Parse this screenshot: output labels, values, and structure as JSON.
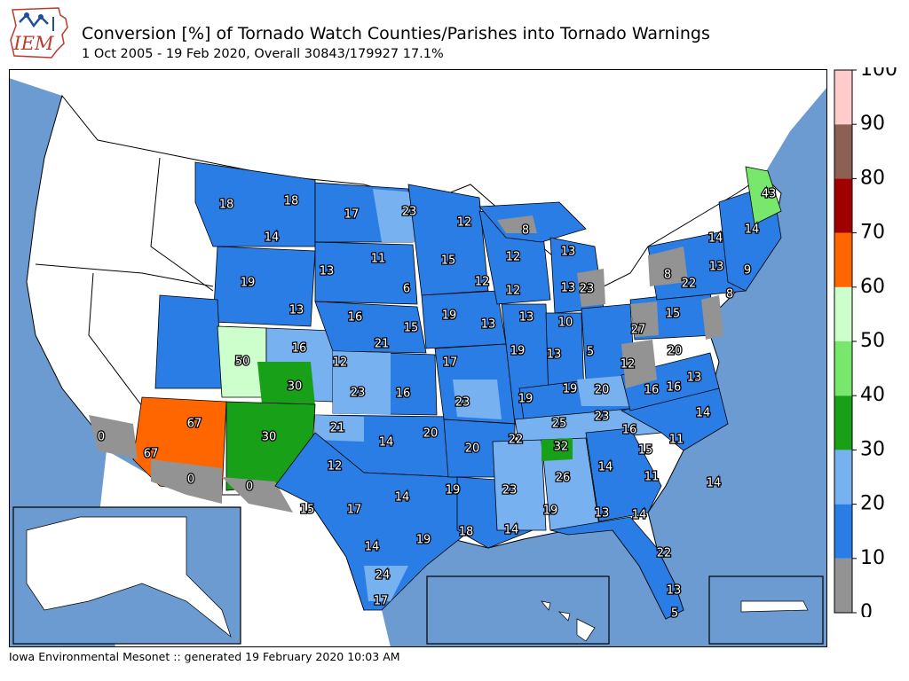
{
  "logo_text": "IEM",
  "title": "Conversion [%] of Tornado Watch Counties/Parishes into Tornado Warnings",
  "subtitle": "1 Oct 2005 - 19 Feb 2020, Overall 30843/179927 17.1%",
  "footer": "Iowa Environmental Mesonet :: generated 19 February 2020 10:03 AM",
  "colors": {
    "ocean": "#6b9bd1",
    "land": "#ffffff",
    "bins": [
      "#939393",
      "#2a7de4",
      "#77b1f0",
      "#18a018",
      "#77e86b",
      "#ccffcc",
      "#ff6600",
      "#a10000",
      "#8c6154",
      "#ffcccc"
    ]
  },
  "colorbar": {
    "ticks": [
      "0",
      "10",
      "20",
      "30",
      "40",
      "50",
      "60",
      "70",
      "80",
      "90",
      "100"
    ]
  },
  "region_values": [
    "18",
    "18",
    "17",
    "23",
    "12",
    "8",
    "43",
    "14",
    "14",
    "14",
    "19",
    "13",
    "11",
    "15",
    "12",
    "13",
    "13",
    "9",
    "8",
    "13",
    "22",
    "12",
    "8",
    "6",
    "12",
    "23",
    "15",
    "13",
    "16",
    "15",
    "13",
    "19",
    "13",
    "10",
    "27",
    "16",
    "21",
    "12",
    "20",
    "17",
    "19",
    "13",
    "5",
    "12",
    "13",
    "50",
    "30",
    "23",
    "16",
    "23",
    "20",
    "19",
    "16",
    "19",
    "16",
    "14",
    "67",
    "0",
    "67",
    "0",
    "30",
    "21",
    "14",
    "20",
    "22",
    "25",
    "23",
    "16",
    "15",
    "11",
    "20",
    "32",
    "26",
    "14",
    "11",
    "12",
    "14",
    "19",
    "23",
    "19",
    "13",
    "14",
    "0",
    "15",
    "17",
    "14",
    "19",
    "14",
    "18",
    "14",
    "22",
    "24",
    "17",
    "13",
    "5"
  ]
}
